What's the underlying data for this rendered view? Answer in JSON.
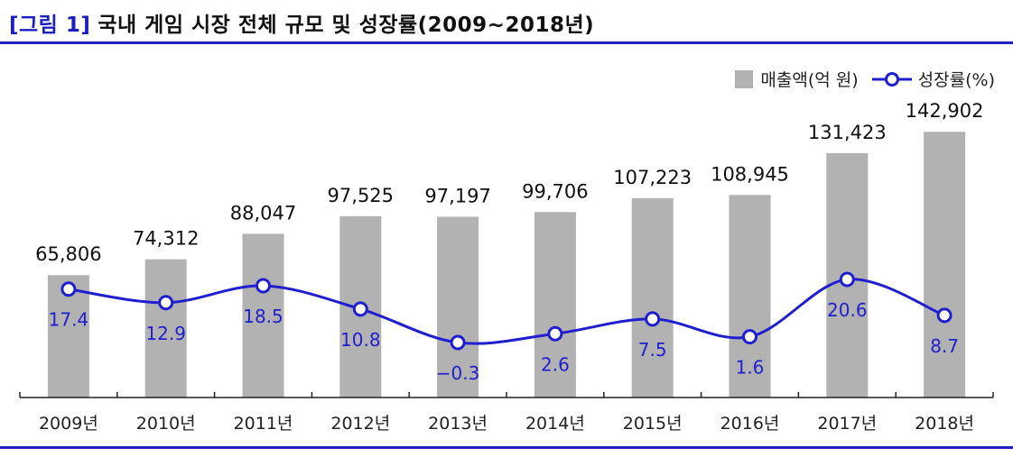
{
  "title": {
    "prefix": "[그림 1]",
    "text": "국내 게임 시장 전체 규모 및 성장률(2009~2018년)"
  },
  "legend": {
    "bar_label": "매출액(억 원)",
    "line_label": "성장률(%)"
  },
  "colors": {
    "bar": "#b2b2b2",
    "line": "#1f1fd0",
    "accent": "#1f1fbf"
  },
  "chart_data": {
    "type": "bar",
    "title": "국내 게임 시장 전체 규모 및 성장률(2009~2018년)",
    "categories": [
      "2009년",
      "2010년",
      "2011년",
      "2012년",
      "2013년",
      "2014년",
      "2015년",
      "2016년",
      "2017년",
      "2018년"
    ],
    "series": [
      {
        "name": "매출액(억 원)",
        "type": "bar",
        "values": [
          65806,
          74312,
          88047,
          97525,
          97197,
          99706,
          107223,
          108945,
          131423,
          142902
        ],
        "labels": [
          "65,806",
          "74,312",
          "88,047",
          "97,525",
          "97,197",
          "99,706",
          "107,223",
          "108,945",
          "131,423",
          "142,902"
        ]
      },
      {
        "name": "성장률(%)",
        "type": "line",
        "values": [
          17.4,
          12.9,
          18.5,
          10.8,
          -0.3,
          2.6,
          7.5,
          1.6,
          20.6,
          8.7
        ],
        "labels": [
          "17.4",
          "12.9",
          "18.5",
          "10.8",
          "−0.3",
          "2.6",
          "7.5",
          "1.6",
          "20.6",
          "8.7"
        ]
      }
    ],
    "bar_ylim": [
      0,
      165000
    ],
    "line_ylim": [
      -12,
      42
    ],
    "grid": false,
    "legend_position": "top-right"
  }
}
